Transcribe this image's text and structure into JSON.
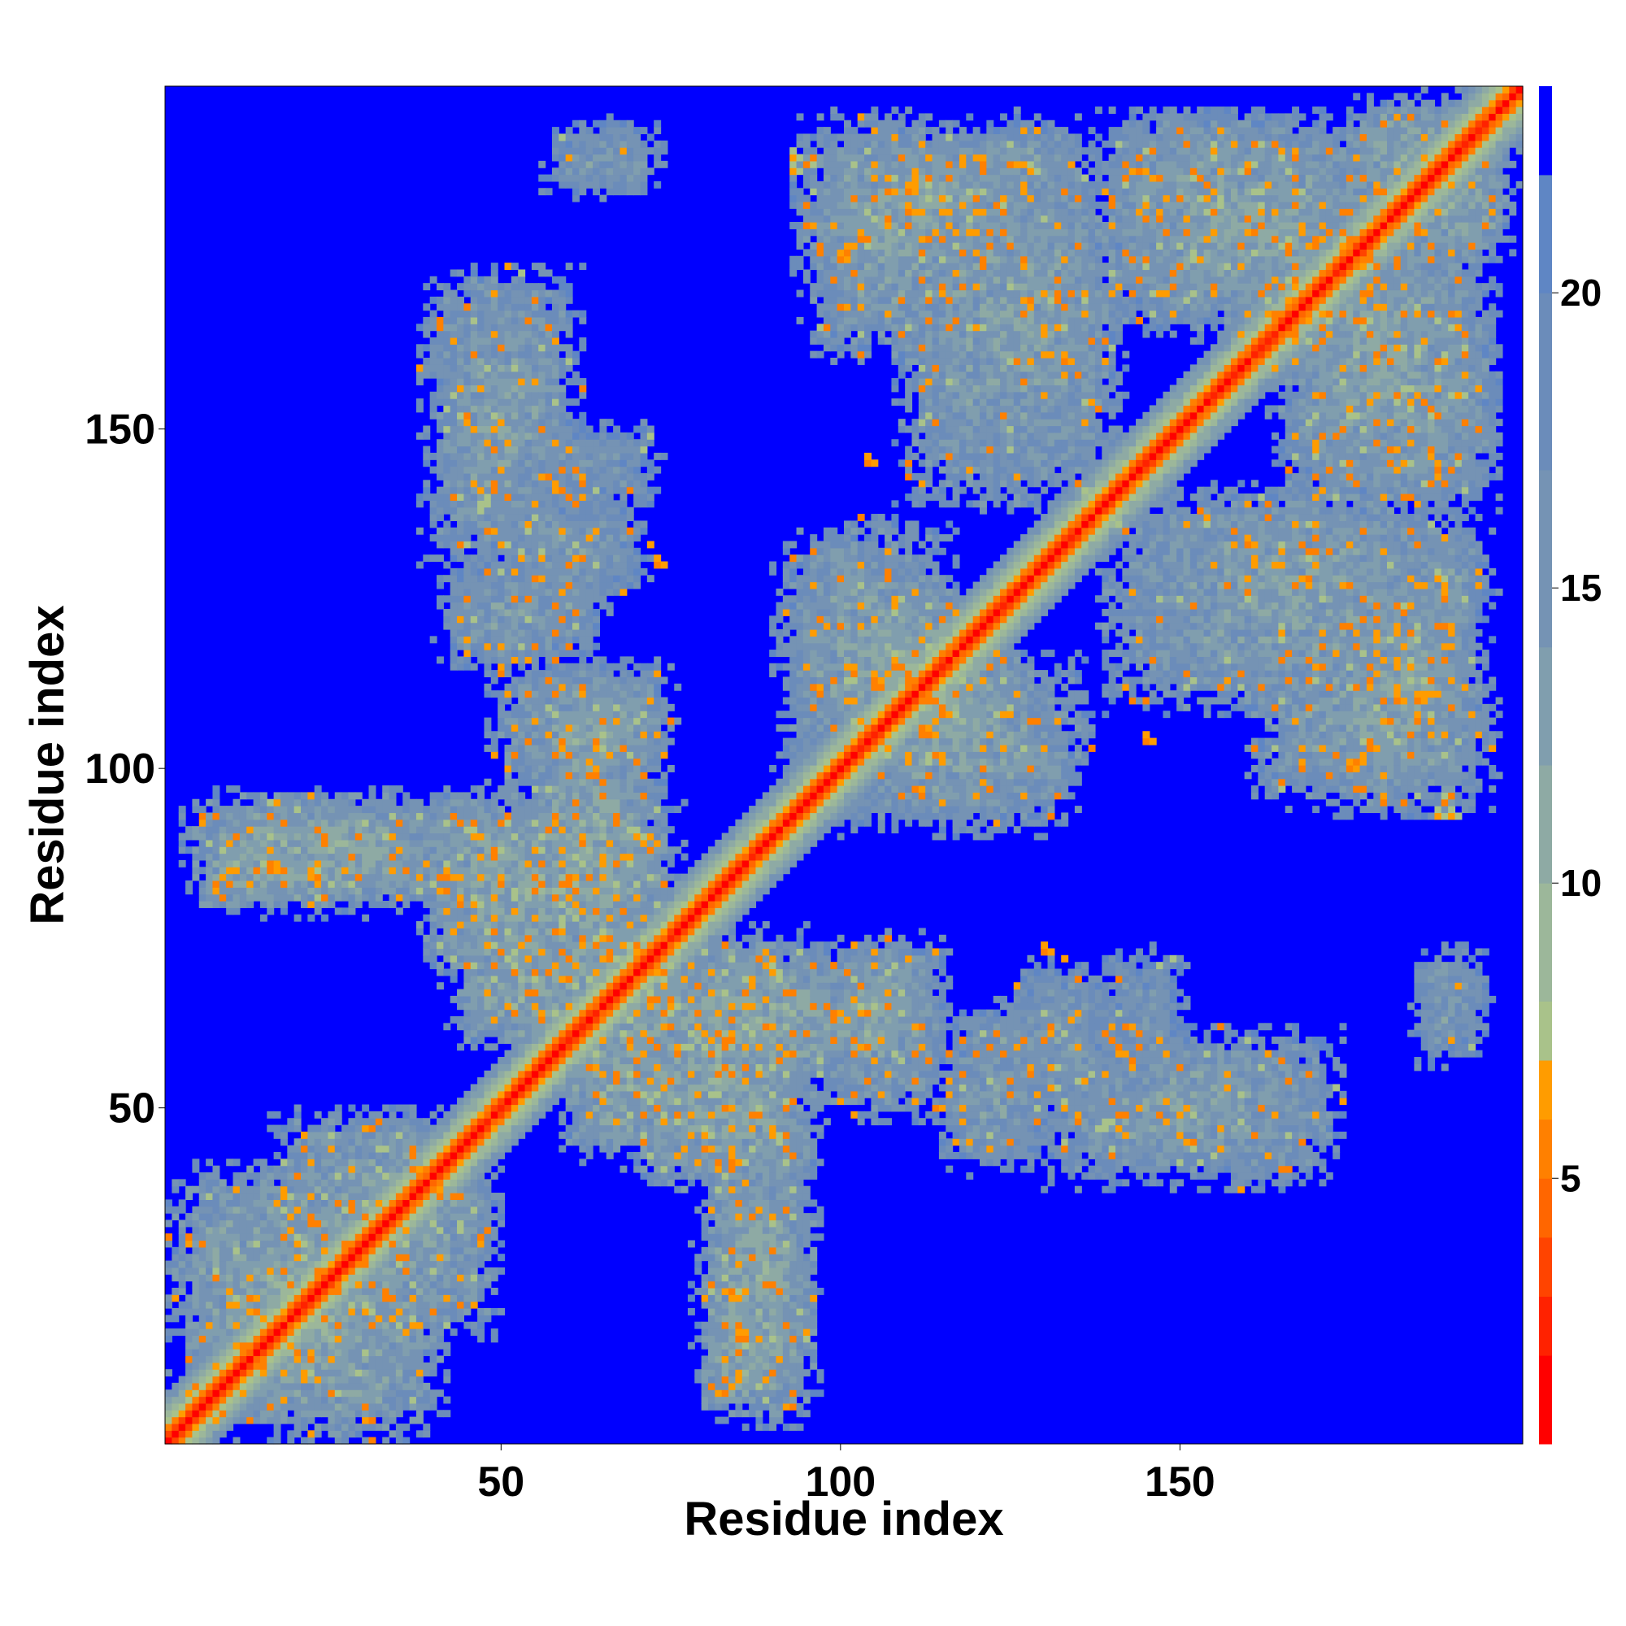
{
  "chart_data": {
    "type": "heatmap",
    "title": "",
    "xlabel": "Residue index",
    "ylabel": "Residue index",
    "xlim": [
      1,
      200
    ],
    "ylim": [
      1,
      200
    ],
    "x_ticks": [
      50,
      100,
      150
    ],
    "y_ticks": [
      50,
      100,
      150
    ],
    "colorbar": {
      "ticks": [
        5,
        10,
        15,
        20
      ],
      "range": [
        0.5,
        23.5
      ],
      "bins": [
        {
          "max": 2,
          "color": "#ff0000"
        },
        {
          "max": 3,
          "color": "#ff2200"
        },
        {
          "max": 4,
          "color": "#ff4400"
        },
        {
          "max": 5,
          "color": "#ff6600"
        },
        {
          "max": 6,
          "color": "#ff8000"
        },
        {
          "max": 7,
          "color": "#ff9c00"
        },
        {
          "max": 8,
          "color": "#a9c28a"
        },
        {
          "max": 10,
          "color": "#9cb79a"
        },
        {
          "max": 12,
          "color": "#8eaaa4"
        },
        {
          "max": 14,
          "color": "#809eae"
        },
        {
          "max": 17,
          "color": "#7593b4"
        },
        {
          "max": 20,
          "color": "#6b8cba"
        },
        {
          "max": 22,
          "color": "#5f86c4"
        },
        {
          "max": 999,
          "color": "#0000ff"
        }
      ],
      "background_color": "#0000ff"
    },
    "symmetric": true,
    "diagonal_band": [
      {
        "offset": 0,
        "value": 1
      },
      {
        "offset": 1,
        "value": 3
      },
      {
        "offset": 2,
        "value": 5
      },
      {
        "offset": 3,
        "value": 7
      },
      {
        "offset": 4,
        "value": 9
      },
      {
        "offset": 5,
        "value": 11
      },
      {
        "offset": 6,
        "value": 13
      },
      {
        "offset": 7,
        "value": 15
      }
    ],
    "contact_blocks": [
      {
        "i": [
          3,
          30
        ],
        "j": [
          8,
          40
        ],
        "value": 12
      },
      {
        "i": [
          18,
          45
        ],
        "j": [
          30,
          48
        ],
        "value": 13
      },
      {
        "i": [
          7,
          18
        ],
        "j": [
          80,
          90
        ],
        "value": 12
      },
      {
        "i": [
          10,
          44
        ],
        "j": [
          82,
          95
        ],
        "value": 13
      },
      {
        "i": [
          40,
          55
        ],
        "j": [
          72,
          95
        ],
        "value": 13
      },
      {
        "i": [
          55,
          72
        ],
        "j": [
          80,
          100
        ],
        "value": 12
      },
      {
        "i": [
          44,
          62
        ],
        "j": [
          60,
          75
        ],
        "value": 12
      },
      {
        "i": [
          42,
          60
        ],
        "j": [
          115,
          130
        ],
        "value": 14
      },
      {
        "i": [
          58,
          74
        ],
        "j": [
          100,
          114
        ],
        "value": 13
      },
      {
        "i": [
          55,
          72
        ],
        "j": [
          140,
          150
        ],
        "value": 15
      },
      {
        "i": [
          58,
          72
        ],
        "j": [
          185,
          194
        ],
        "value": 14
      },
      {
        "i": [
          70,
          95
        ],
        "j": [
          40,
          75
        ],
        "value": 12
      },
      {
        "i": [
          80,
          95
        ],
        "j": [
          5,
          40
        ],
        "value": 12
      },
      {
        "i": [
          62,
          82
        ],
        "j": [
          55,
          70
        ],
        "value": 13
      },
      {
        "i": [
          95,
          115
        ],
        "j": [
          50,
          72
        ],
        "value": 13
      },
      {
        "i": [
          92,
          115
        ],
        "j": [
          100,
          135
        ],
        "value": 13
      },
      {
        "i": [
          100,
          120
        ],
        "j": [
          110,
          125
        ],
        "value": 12
      },
      {
        "i": [
          96,
          118
        ],
        "j": [
          162,
          195
        ],
        "value": 13
      },
      {
        "i": [
          110,
          140
        ],
        "j": [
          140,
          190
        ],
        "value": 13
      },
      {
        "i": [
          125,
          140
        ],
        "j": [
          50,
          70
        ],
        "value": 14
      },
      {
        "i": [
          118,
          132
        ],
        "j": [
          58,
          64
        ],
        "value": 14
      },
      {
        "i": [
          132,
          172
        ],
        "j": [
          40,
          60
        ],
        "value": 13
      },
      {
        "i": [
          140,
          180
        ],
        "j": [
          165,
          195
        ],
        "value": 13
      },
      {
        "i": [
          165,
          185
        ],
        "j": [
          160,
          175
        ],
        "value": 14
      },
      {
        "i": [
          175,
          192
        ],
        "j": [
          95,
          130
        ],
        "value": 13
      },
      {
        "i": [
          158,
          176
        ],
        "j": [
          122,
          138
        ],
        "value": 14
      },
      {
        "i": [
          168,
          195
        ],
        "j": [
          140,
          170
        ],
        "value": 13
      },
      {
        "i": [
          176,
          192
        ],
        "j": [
          182,
          198
        ],
        "value": 12
      },
      {
        "i": [
          120,
          135
        ],
        "j": [
          185,
          195
        ],
        "value": 14
      }
    ],
    "hot_spots": [
      [
        13,
        22,
        5
      ],
      [
        20,
        30,
        6
      ],
      [
        28,
        35,
        5
      ],
      [
        42,
        84,
        5
      ],
      [
        46,
        80,
        6
      ],
      [
        60,
        83,
        5
      ],
      [
        65,
        75,
        6
      ],
      [
        70,
        90,
        6
      ],
      [
        80,
        44,
        5
      ],
      [
        85,
        16,
        5
      ],
      [
        85,
        22,
        6
      ],
      [
        105,
        104,
        5
      ],
      [
        108,
        116,
        6
      ],
      [
        107,
        128,
        5
      ],
      [
        104,
        145,
        5
      ],
      [
        120,
        165,
        6
      ],
      [
        125,
        45,
        5
      ],
      [
        131,
        53,
        6
      ],
      [
        135,
        48,
        5
      ],
      [
        130,
        60,
        5
      ],
      [
        140,
        183,
        5
      ],
      [
        160,
        133,
        5
      ],
      [
        165,
        132,
        6
      ],
      [
        168,
        100,
        5
      ],
      [
        170,
        115,
        6
      ],
      [
        180,
        95,
        5
      ],
      [
        185,
        110,
        5
      ],
      [
        188,
        128,
        6
      ],
      [
        190,
        93,
        6
      ],
      [
        178,
        170,
        5
      ],
      [
        93,
        188,
        6
      ],
      [
        100,
        175,
        5
      ],
      [
        96,
        190,
        5
      ],
      [
        73,
        130,
        5
      ],
      [
        72,
        133,
        6
      ]
    ]
  }
}
